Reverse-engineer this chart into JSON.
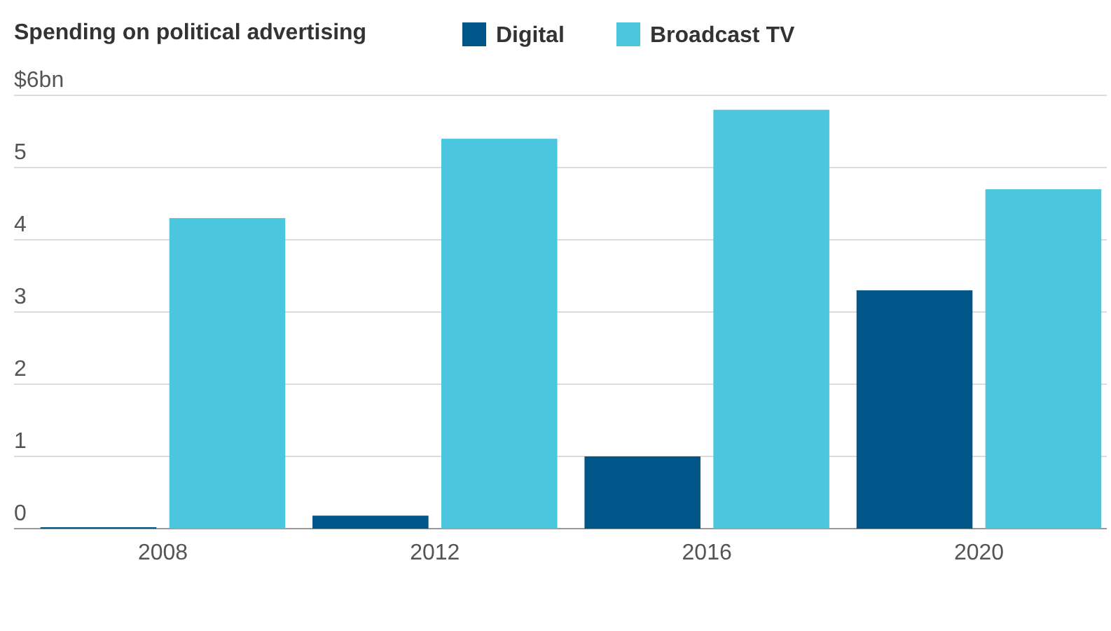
{
  "chart_data": {
    "type": "bar",
    "title": "Spending on political advertising",
    "categories": [
      "2008",
      "2012",
      "2016",
      "2020"
    ],
    "series": [
      {
        "name": "Digital",
        "color": "#005689",
        "values": [
          0.02,
          0.18,
          1.0,
          3.3
        ]
      },
      {
        "name": "Broadcast TV",
        "color": "#4bc6df",
        "values": [
          4.3,
          5.4,
          5.8,
          4.7
        ]
      }
    ],
    "ylim": [
      0,
      6
    ],
    "yticks": [
      0,
      1,
      2,
      3,
      4,
      5,
      {
        "value": 6,
        "label": "$6bn"
      }
    ],
    "grid": "y",
    "legend": "top"
  }
}
